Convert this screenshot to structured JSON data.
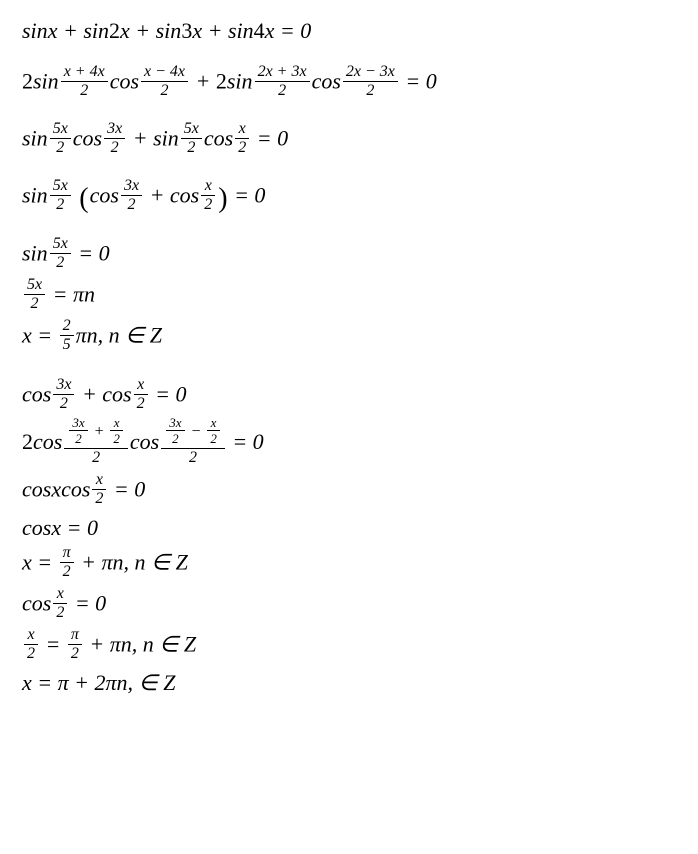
{
  "font": {
    "family": "Times New Roman (italic)",
    "size_pt": 22,
    "frac_size_pt": 16,
    "color": "#000000"
  },
  "background_color": "#ffffff",
  "lines": {
    "l1": {
      "sin": "sin",
      "x": "x",
      "plus": "+",
      "two": "2",
      "three": "3",
      "four": "4",
      "eq0": "= 0"
    },
    "l2": {
      "two": "2",
      "sin": "sin",
      "cos": "cos",
      "f1n": "x + 4x",
      "f1d": "2",
      "f2n": "x − 4x",
      "f2d": "2",
      "plus": "+",
      "f3n": "2x + 3x",
      "f3d": "2",
      "f4n": "2x − 3x",
      "f4d": "2",
      "eq0": "= 0"
    },
    "l3": {
      "sin": "sin",
      "cos": "cos",
      "f5xn": "5x",
      "f5xd": "2",
      "f3xn": "3x",
      "f3xd": "2",
      "plus": "+",
      "fxn": "x",
      "fxd": "2",
      "eq0": "= 0"
    },
    "l4": {
      "sin": "sin",
      "cos": "cos",
      "f5xn": "5x",
      "f5xd": "2",
      "f3xn": "3x",
      "f3xd": "2",
      "plus": "+",
      "fxn": "x",
      "fxd": "2",
      "eq0": "= 0"
    },
    "l5": {
      "sin": "sin",
      "f5xn": "5x",
      "f5xd": "2",
      "eq0": "= 0"
    },
    "l6": {
      "f5xn": "5x",
      "f5xd": "2",
      "eq": "=",
      "pin": "πn"
    },
    "l7": {
      "x": "x",
      "eq": "=",
      "fn": "2",
      "fd": "5",
      "pin": "πn, n ∈ Z"
    },
    "l8": {
      "cos": "cos",
      "f3xn": "3x",
      "f3xd": "2",
      "plus": "+",
      "fxn": "x",
      "fxd": "2",
      "eq0": "= 0"
    },
    "l9": {
      "two": "2",
      "cos": "cos",
      "tn1a": "3x",
      "tn1b": "2",
      "plus": "+",
      "tn2a": "x",
      "tn2b": "2",
      "bd": "2",
      "minus": "−",
      "eq0": "= 0"
    },
    "l10": {
      "cos": "cos",
      "x": "x",
      "fxn": "x",
      "fxd": "2",
      "eq0": "= 0"
    },
    "l11": {
      "cos": "cos",
      "x": "x",
      "eq0": "= 0"
    },
    "l12": {
      "x": "x",
      "eq": "=",
      "fn": "π",
      "fd": "2",
      "tail": "+ πn, n ∈ Z"
    },
    "l13": {
      "cos": "cos",
      "fxn": "x",
      "fxd": "2",
      "eq0": "= 0"
    },
    "l14": {
      "fl_n": "x",
      "fl_d": "2",
      "eq": "=",
      "fr_n": "π",
      "fr_d": "2",
      "tail": "+ πn, n ∈ Z"
    },
    "l15": {
      "x": "x",
      "eq": "=",
      "pi": "π",
      "tail": "+ 2πn, ∈ Z"
    }
  }
}
